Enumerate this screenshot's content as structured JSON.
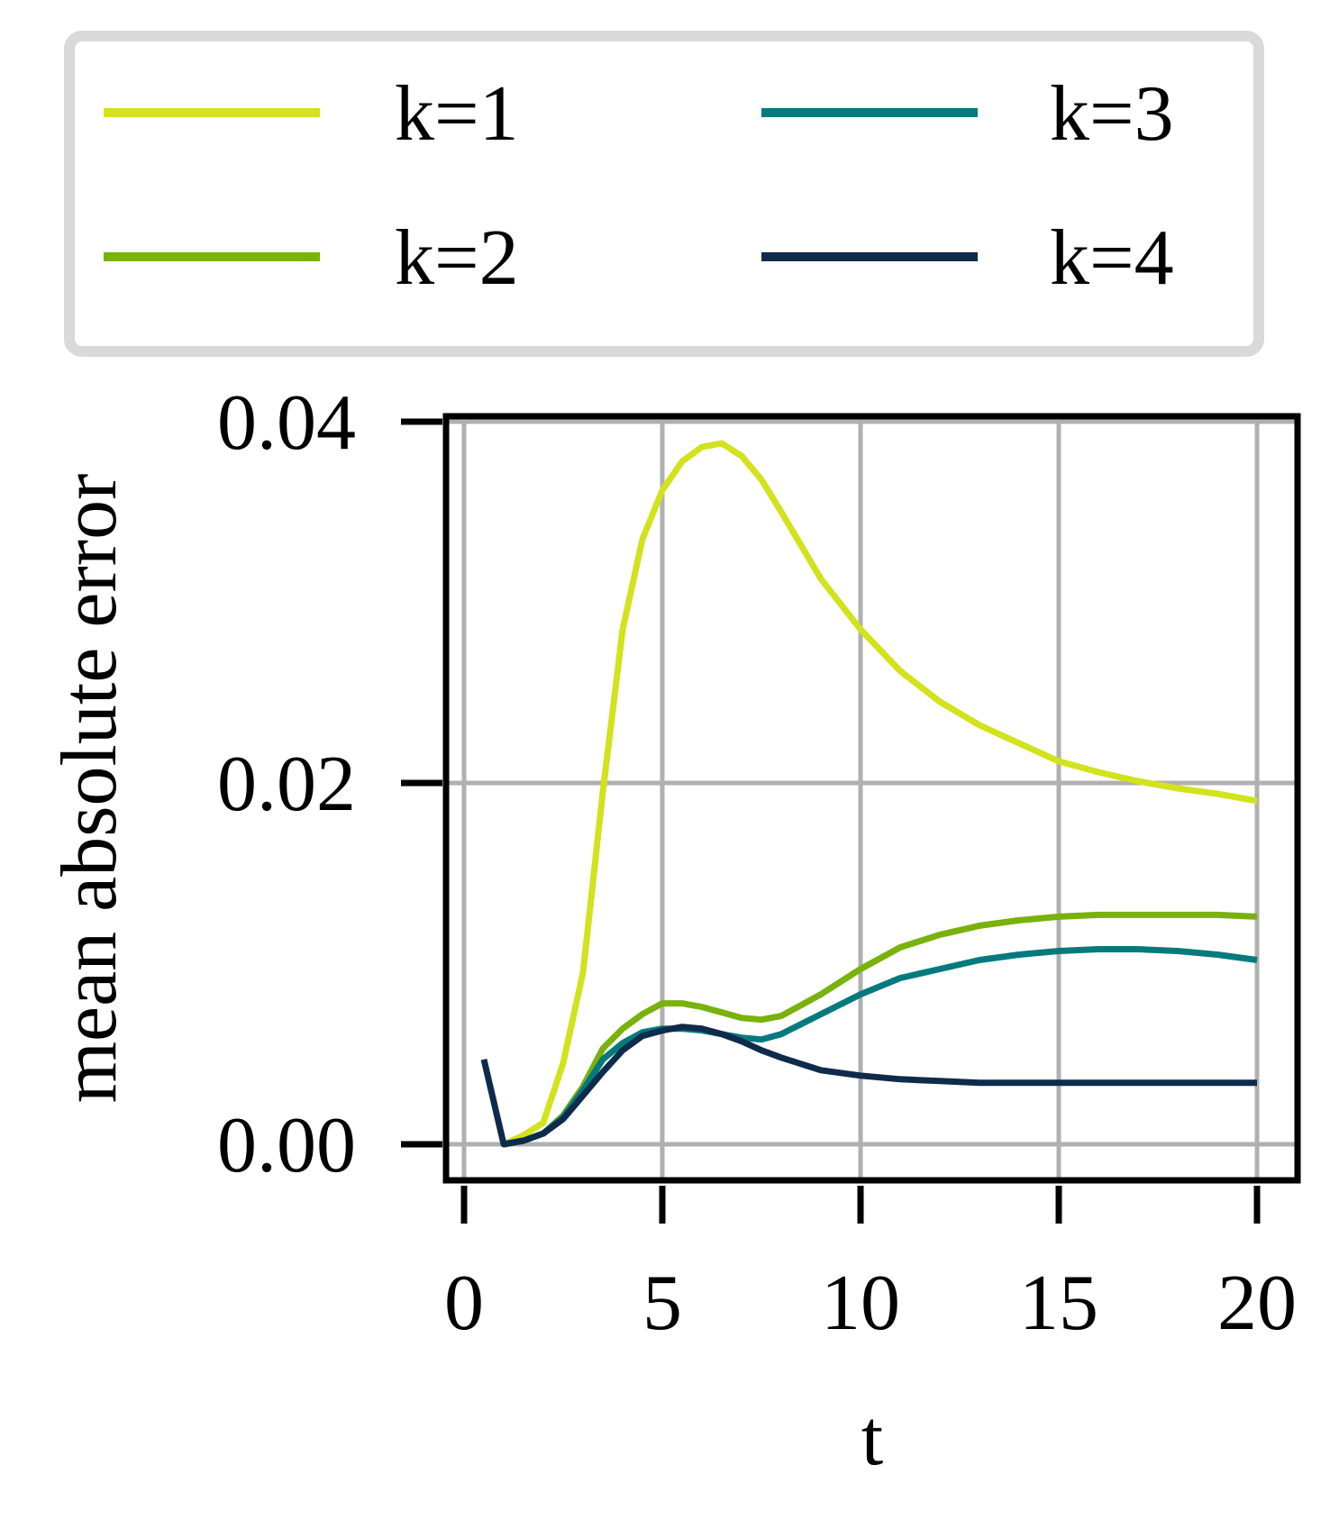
{
  "chart_data": {
    "type": "line",
    "title": "",
    "xlabel": "t",
    "ylabel": "mean absolute error",
    "xlim": [
      0,
      20
    ],
    "ylim": [
      0.0,
      0.04
    ],
    "xticks": [
      "0",
      "5",
      "10",
      "15",
      "20"
    ],
    "yticks": [
      "0.00",
      "0.02",
      "0.04"
    ],
    "grid": true,
    "legend_position": "top",
    "series": [
      {
        "name": "k=1",
        "color": "#d2e21c",
        "x": [
          1.0,
          1.5,
          2.0,
          2.5,
          3.0,
          3.5,
          4.0,
          4.5,
          5.0,
          5.5,
          6.0,
          6.5,
          7.0,
          7.5,
          8.0,
          9.0,
          10.0,
          11.0,
          12.0,
          13.0,
          14.0,
          15.0,
          16.0,
          17.0,
          18.0,
          19.0,
          20.0
        ],
        "y": [
          0.0,
          0.0005,
          0.0012,
          0.0045,
          0.0095,
          0.0195,
          0.0285,
          0.0335,
          0.0362,
          0.0378,
          0.0386,
          0.0388,
          0.0381,
          0.0368,
          0.035,
          0.0313,
          0.0285,
          0.0262,
          0.0245,
          0.0232,
          0.0222,
          0.0212,
          0.0206,
          0.0201,
          0.0197,
          0.0194,
          0.019
        ]
      },
      {
        "name": "k=2",
        "color": "#79b10d",
        "x": [
          1.0,
          1.5,
          2.0,
          2.5,
          3.0,
          3.5,
          4.0,
          4.5,
          5.0,
          5.5,
          6.0,
          6.5,
          7.0,
          7.5,
          8.0,
          9.0,
          10.0,
          11.0,
          12.0,
          13.0,
          14.0,
          15.0,
          16.0,
          17.0,
          18.0,
          19.0,
          20.0
        ],
        "y": [
          0.0,
          0.0002,
          0.0006,
          0.0016,
          0.0032,
          0.0053,
          0.0064,
          0.0072,
          0.0078,
          0.0078,
          0.0076,
          0.0073,
          0.007,
          0.0069,
          0.0071,
          0.0083,
          0.0097,
          0.0109,
          0.0116,
          0.0121,
          0.0124,
          0.0126,
          0.0127,
          0.0127,
          0.0127,
          0.0127,
          0.0126
        ]
      },
      {
        "name": "k=3",
        "color": "#057a7c",
        "x": [
          1.0,
          1.5,
          2.0,
          2.5,
          3.0,
          3.5,
          4.0,
          4.5,
          5.0,
          5.5,
          6.0,
          6.5,
          7.0,
          7.5,
          8.0,
          9.0,
          10.0,
          11.0,
          12.0,
          13.0,
          14.0,
          15.0,
          16.0,
          17.0,
          18.0,
          19.0,
          20.0
        ],
        "y": [
          0.0,
          0.0002,
          0.0006,
          0.0015,
          0.003,
          0.0047,
          0.0056,
          0.0062,
          0.0064,
          0.0064,
          0.0063,
          0.0061,
          0.0059,
          0.0058,
          0.0061,
          0.0072,
          0.0083,
          0.0092,
          0.0097,
          0.0102,
          0.0105,
          0.0107,
          0.0108,
          0.0108,
          0.0107,
          0.0105,
          0.0102
        ]
      },
      {
        "name": "k=4",
        "color": "#0f2b4c",
        "x": [
          0.5,
          1.0,
          1.5,
          2.0,
          2.5,
          3.0,
          3.5,
          4.0,
          4.5,
          5.0,
          5.5,
          6.0,
          6.5,
          7.0,
          7.5,
          8.0,
          9.0,
          10.0,
          11.0,
          12.0,
          13.0,
          14.0,
          15.0,
          16.0,
          17.0,
          18.0,
          19.0,
          20.0
        ],
        "y": [
          0.0047,
          0.0,
          0.0002,
          0.0006,
          0.0014,
          0.0027,
          0.004,
          0.0052,
          0.006,
          0.0063,
          0.0065,
          0.0064,
          0.0061,
          0.0057,
          0.0052,
          0.0048,
          0.0041,
          0.0038,
          0.0036,
          0.0035,
          0.0034,
          0.0034,
          0.0034,
          0.0034,
          0.0034,
          0.0034,
          0.0034,
          0.0034
        ]
      }
    ]
  }
}
